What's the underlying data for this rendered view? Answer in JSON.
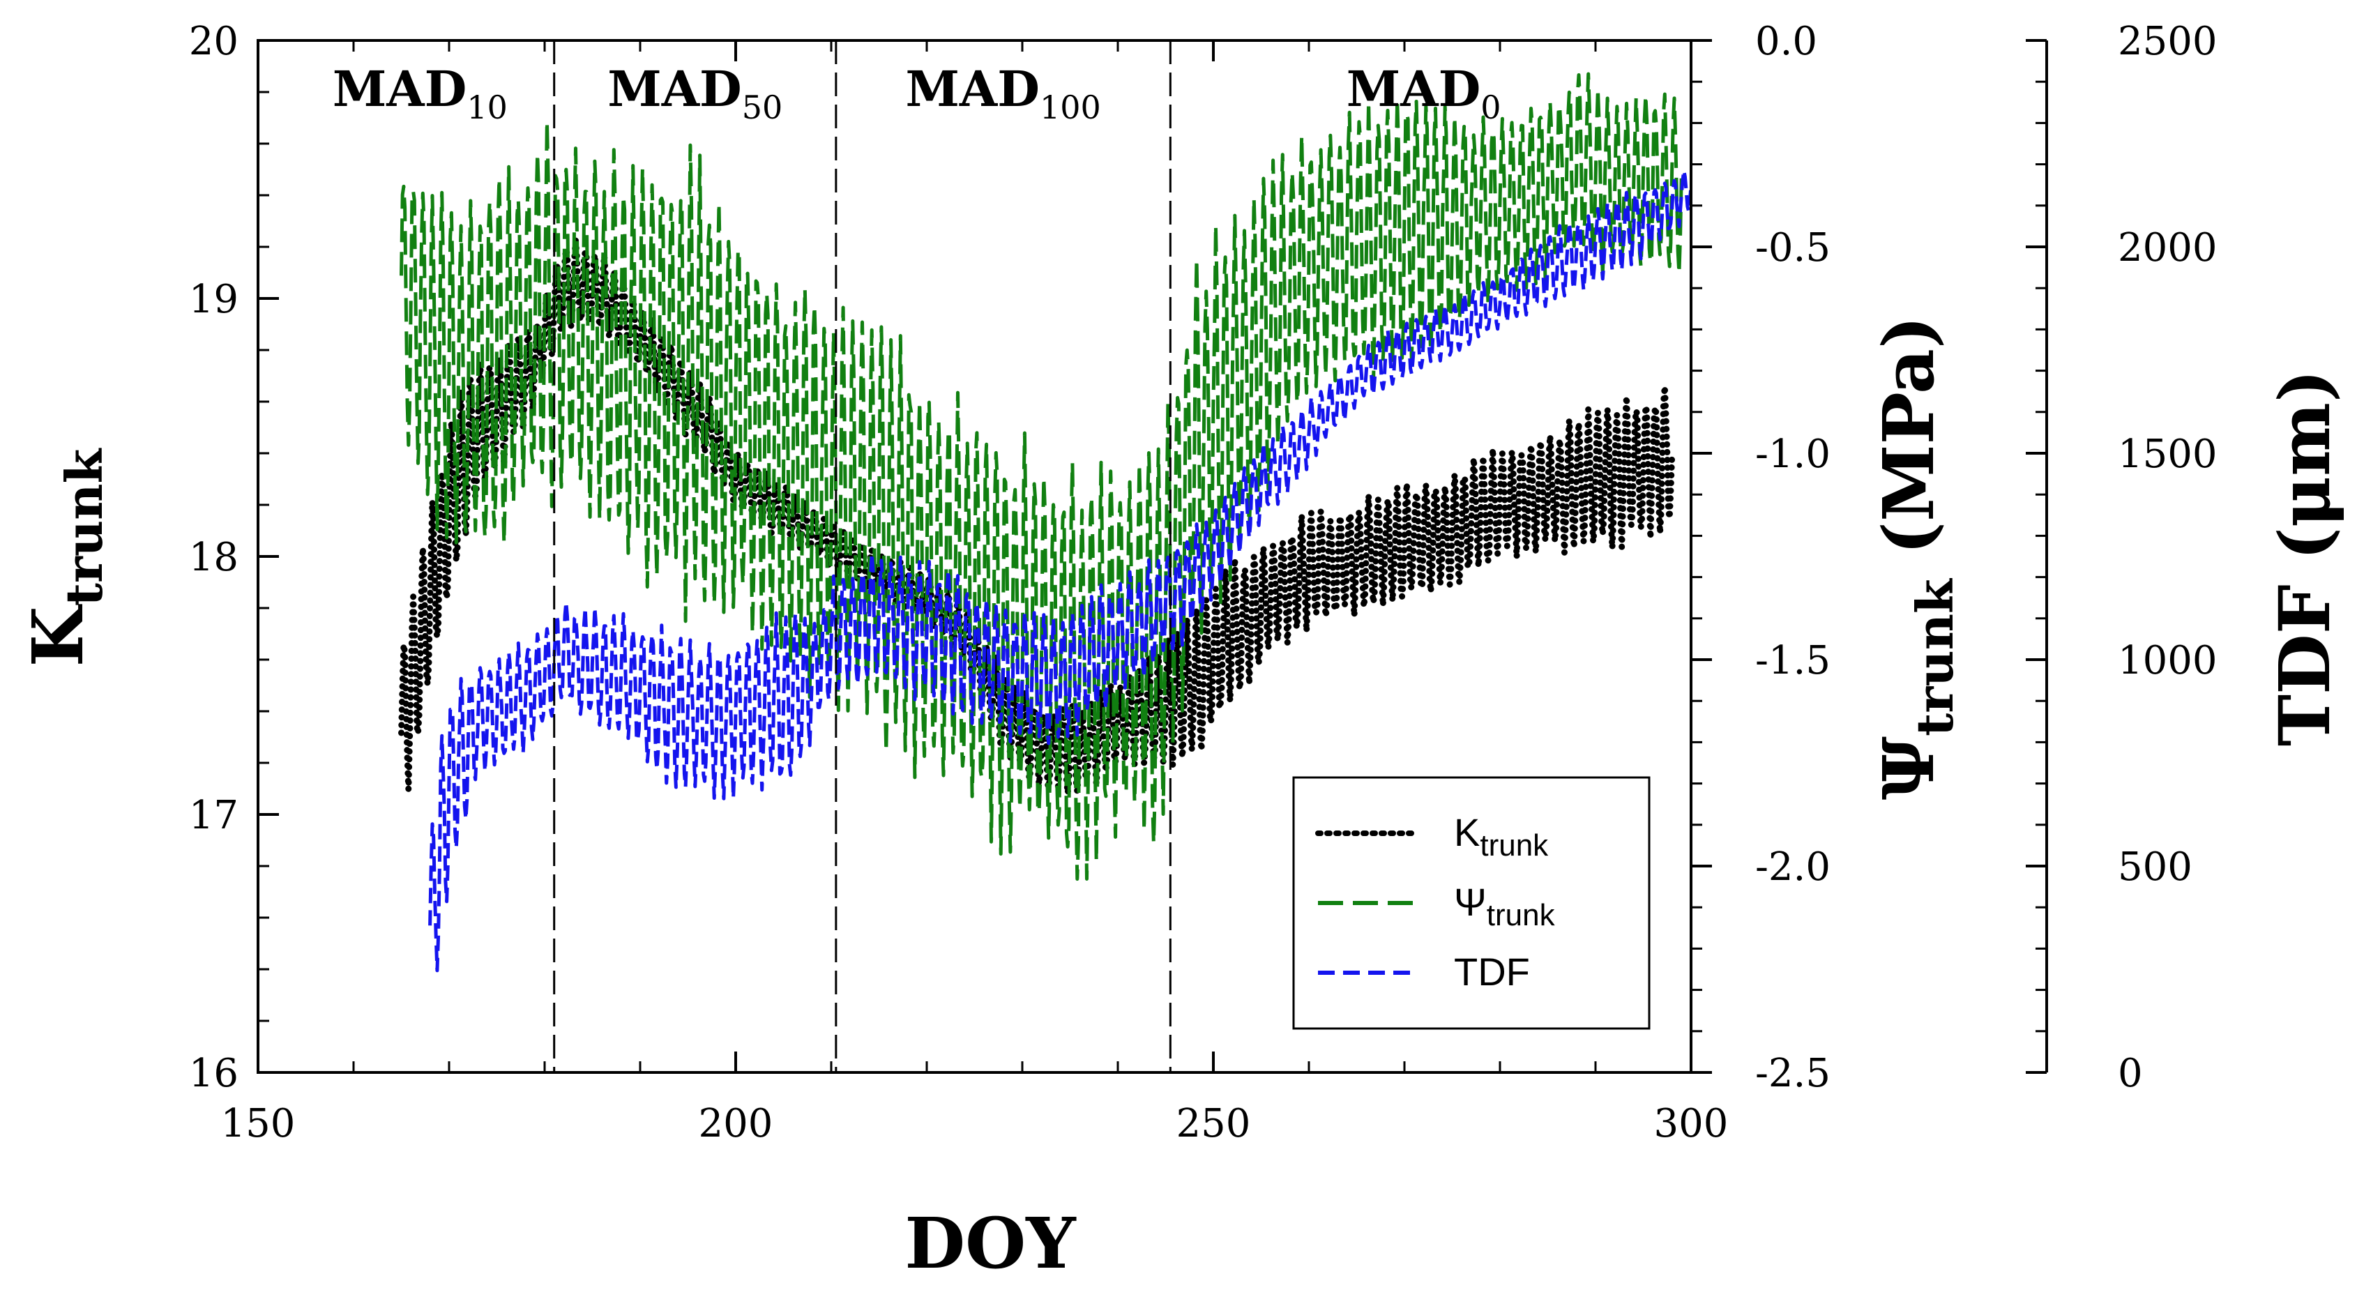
{
  "chart_data": {
    "type": "line",
    "title": "",
    "xlabel": "DOY",
    "xlim": [
      150,
      300
    ],
    "x_ticks": [
      "150",
      "200",
      "250",
      "300"
    ],
    "axes": {
      "left": {
        "label_main": "K",
        "label_sub": "trunk",
        "ylim": [
          16,
          20
        ],
        "ticks": [
          "16",
          "17",
          "18",
          "19",
          "20"
        ]
      },
      "right1": {
        "label_main": "Ψ",
        "label_sub": "trunk",
        "label_unit": " (MPa)",
        "ylim": [
          -2.5,
          0.0
        ],
        "ticks": [
          "-2.5",
          "-2.0",
          "-1.5",
          "-1.0",
          "-0.5",
          "0.0"
        ]
      },
      "right2": {
        "label": "TDF (μm)",
        "ylim": [
          0,
          2500
        ],
        "ticks": [
          "0",
          "500",
          "1000",
          "1500",
          "2000",
          "2500"
        ]
      }
    },
    "regions": [
      {
        "name": "MAD",
        "sub": "10",
        "start": 150,
        "end": 181
      },
      {
        "name": "MAD",
        "sub": "50",
        "start": 181,
        "end": 210.5
      },
      {
        "name": "MAD",
        "sub": "100",
        "start": 210.5,
        "end": 245.5
      },
      {
        "name": "MAD",
        "sub": "0",
        "start": 245.5,
        "end": 300
      }
    ],
    "region_boundaries": [
      181,
      210.5,
      245.5
    ],
    "series": [
      {
        "name": "Ktrunk",
        "legend_main": "K",
        "legend_sub": "trunk",
        "axis": "left",
        "color": "#000000",
        "style": "dotted",
        "x": [
          165,
          167,
          169,
          171,
          173,
          176,
          179,
          182,
          185,
          188,
          191,
          194,
          197,
          200,
          204,
          208,
          212,
          216,
          220,
          224,
          228,
          232,
          236,
          240,
          244,
          248,
          252,
          256,
          260,
          265,
          270,
          275,
          280,
          285,
          290,
          295,
          298
        ],
        "mid": [
          17.3,
          17.65,
          18.0,
          18.3,
          18.5,
          18.6,
          18.75,
          19.05,
          19.05,
          18.95,
          18.8,
          18.65,
          18.5,
          18.3,
          18.2,
          18.1,
          18.0,
          17.92,
          17.85,
          17.7,
          17.4,
          17.25,
          17.25,
          17.35,
          17.4,
          17.5,
          17.7,
          17.85,
          17.95,
          18.0,
          18.05,
          18.1,
          18.2,
          18.25,
          18.3,
          18.35,
          18.4
        ],
        "amp": [
          0.3,
          0.3,
          0.3,
          0.3,
          0.25,
          0.2,
          0.15,
          0.15,
          0.15,
          0.12,
          0.12,
          0.12,
          0.12,
          0.1,
          0.1,
          0.08,
          0.08,
          0.08,
          0.08,
          0.1,
          0.15,
          0.15,
          0.15,
          0.15,
          0.2,
          0.25,
          0.25,
          0.2,
          0.2,
          0.2,
          0.2,
          0.2,
          0.2,
          0.2,
          0.25,
          0.25,
          0.25
        ]
      },
      {
        "name": "Ψtrunk",
        "legend_main": "Ψ",
        "legend_sub": "trunk",
        "axis": "right1",
        "color": "#118011",
        "style": "dashed",
        "x": [
          165,
          168,
          172,
          176,
          180,
          184,
          188,
          192,
          196,
          200,
          204,
          208,
          212,
          216,
          220,
          224,
          228,
          232,
          236,
          240,
          244,
          248,
          252,
          256,
          260,
          265,
          270,
          275,
          280,
          285,
          288,
          292,
          296,
          299
        ],
        "mid": [
          -0.6,
          -0.75,
          -0.85,
          -0.75,
          -0.65,
          -0.7,
          -0.75,
          -0.8,
          -0.85,
          -0.9,
          -1.05,
          -1.1,
          -1.15,
          -1.2,
          -1.3,
          -1.35,
          -1.45,
          -1.5,
          -1.55,
          -1.45,
          -1.5,
          -1.0,
          -0.85,
          -0.7,
          -0.55,
          -0.5,
          -0.45,
          -0.45,
          -0.4,
          -0.35,
          -0.3,
          -0.35,
          -0.35,
          -0.35
        ],
        "amp": [
          0.3,
          0.35,
          0.4,
          0.4,
          0.4,
          0.4,
          0.45,
          0.5,
          0.5,
          0.45,
          0.45,
          0.45,
          0.45,
          0.45,
          0.45,
          0.45,
          0.45,
          0.45,
          0.45,
          0.4,
          0.45,
          0.4,
          0.4,
          0.35,
          0.3,
          0.3,
          0.3,
          0.25,
          0.2,
          0.2,
          0.2,
          0.2,
          0.2,
          0.2
        ]
      },
      {
        "name": "TDF",
        "legend_main": "TDF",
        "legend_sub": "",
        "axis": "right2",
        "color": "#1414ee",
        "style": "dashed",
        "x": [
          168,
          170,
          173,
          176,
          179,
          182,
          186,
          190,
          194,
          198,
          202,
          206,
          208,
          210,
          214,
          218,
          222,
          226,
          230,
          234,
          238,
          242,
          246,
          250,
          254,
          258,
          262,
          266,
          270,
          275,
          280,
          285,
          290,
          294,
          298,
          300
        ],
        "mid": [
          350,
          700,
          850,
          880,
          930,
          1020,
          970,
          930,
          870,
          850,
          880,
          900,
          950,
          1050,
          1100,
          1080,
          1050,
          1000,
          950,
          950,
          1020,
          1080,
          1150,
          1250,
          1400,
          1500,
          1600,
          1700,
          1750,
          1800,
          1870,
          1950,
          2000,
          2050,
          2100,
          2150
        ],
        "amp": [
          250,
          200,
          130,
          120,
          120,
          110,
          130,
          150,
          170,
          170,
          180,
          200,
          120,
          130,
          140,
          150,
          150,
          150,
          150,
          140,
          140,
          120,
          120,
          100,
          80,
          80,
          60,
          60,
          60,
          60,
          60,
          80,
          80,
          80,
          60,
          60
        ]
      }
    ]
  }
}
